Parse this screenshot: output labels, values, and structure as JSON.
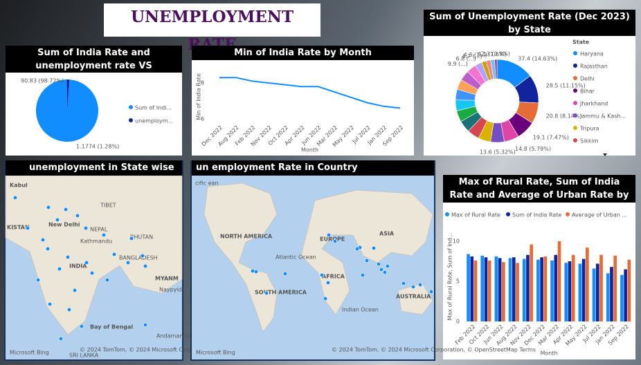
{
  "title": "UNEMPLOYMENT RATE",
  "chart_data": [
    {
      "type": "pie",
      "title": "Sum of India Rate and unemployment rate VS",
      "categories": [
        "Sum of Indi...",
        "unemploym..."
      ],
      "values": [
        90.83,
        1.1774
      ],
      "value_labels": [
        "90.83 (98.72%)",
        "1.1774 (1.28%)"
      ],
      "colors": [
        "#118dff",
        "#12239e"
      ]
    },
    {
      "type": "line",
      "title": "Min of India Rate by Month",
      "x_label": "Month",
      "y_label": "Min of India Rate",
      "categories": [
        "Dec 2022",
        "Aug 2022",
        "Feb 2022",
        "Nov 2022",
        "Oct 2022",
        "Apr 2022",
        "Jun 2022",
        "Mar 2022",
        "May 2022",
        "Jul 2022",
        "Jan 2022",
        "Sep 2022"
      ],
      "values": [
        8.3,
        8.3,
        8.1,
        8.0,
        7.9,
        7.8,
        7.8,
        7.5,
        7.2,
        6.9,
        6.7,
        6.6
      ],
      "color": "#118dff",
      "ylim": [
        5.8,
        8.6
      ],
      "yticks": [
        6,
        8
      ]
    },
    {
      "type": "donut",
      "title": "Sum of Unemployment Rate (Dec 2023) by State",
      "legend_title": "State",
      "categories": [
        "Haryana",
        "Rajasthan",
        "Delhi",
        "Bihar",
        "Jharkhand",
        "Jammu & Kash...",
        "Tripura",
        "Sikkim",
        null,
        null,
        null,
        null,
        null,
        null,
        null,
        null,
        null,
        null,
        null,
        null
      ],
      "values": [
        37.4,
        28.5,
        20.8,
        19.1,
        14.8,
        13.6,
        12.4,
        12.2,
        11.8,
        11.2,
        10.9,
        10.6,
        10.2,
        10.0,
        9.9,
        6.8,
        4.7,
        4.3,
        4.1,
        2.3
      ],
      "value_labels": [
        "37.4 (14.63%)",
        "28.5 (11.15%)",
        "20.8 (8.14%)",
        "19.1 (7.47%)",
        "14.8 (5.79%)",
        "13.6 (5.32%)",
        null,
        null,
        null,
        null,
        null,
        null,
        null,
        null,
        "9.9 (...)",
        "6.8 (...)",
        "4.7 (...)",
        "4.3 (1...)",
        "4.1 (1.6%)",
        "2.3 (0.9%)"
      ],
      "colors": [
        "#118dff",
        "#12239e",
        "#e66c37",
        "#6b007b",
        "#e044a7",
        "#744ec2",
        "#d9b300",
        "#d64550",
        "#197278",
        "#1aab40",
        "#15c6f4",
        "#4092ff",
        "#ffa058",
        "#be5dc9",
        "#f472d0",
        "#b5a1ff",
        "#c4a200",
        "#ff8080",
        "#6ac4ff",
        "#a43b76"
      ]
    },
    {
      "type": "grouped_bar",
      "title": "Max of Rural Rate, Sum of India Rate and Average of Urban Rate by Month",
      "x_label": "Month",
      "y_label": "Max of Rural Rate, Sum of Ind...",
      "categories": [
        "Feb 2022",
        "Oct 2022",
        "Jun 2022",
        "Aug 2022",
        "Nov 2022",
        "Dec 2022",
        "Mar 2022",
        "Apr 2022",
        "May 2022",
        "Jul 2022",
        "Jan 2022",
        "Sep 2022"
      ],
      "series": [
        {
          "name": "Max of Rural Rate",
          "color": "#118dff",
          "values": [
            8.4,
            8.2,
            8.1,
            7.9,
            7.8,
            7.7,
            7.6,
            7.3,
            7.2,
            6.6,
            6.0,
            5.8
          ]
        },
        {
          "name": "Sum of India Rate",
          "color": "#12239e",
          "values": [
            8.1,
            8.0,
            7.9,
            8.0,
            8.3,
            8.0,
            8.3,
            7.5,
            7.8,
            7.2,
            6.8,
            6.5
          ]
        },
        {
          "name": "Average of Urban ...",
          "color": "#e66c37",
          "values": [
            7.6,
            7.6,
            7.4,
            7.3,
            9.6,
            8.1,
            10.0,
            8.3,
            9.2,
            8.3,
            8.2,
            7.7
          ]
        }
      ],
      "ylim": [
        0,
        11
      ],
      "yticks": [
        0,
        5,
        10
      ]
    }
  ],
  "maps": [
    {
      "title": "unemployment in State wise",
      "labels": [
        "Kabul",
        "TIBET",
        "KISTAN",
        "New Delhi",
        "NEPAL",
        "Kathmandu",
        "BHUTAN",
        "BANGLADESH",
        "INDIA",
        "MYANM",
        "Naypyid",
        "Bay of Bengal",
        "Andaman Sea",
        "SRI LANKA"
      ],
      "credit": "© 2024 TomTom, © 2024 Microsoft Corporation, © OpenStreetMap  Terms",
      "brand": "Microsoft Bing"
    },
    {
      "title": "un employment Rate in Country",
      "labels": [
        "NORTH AMERICA",
        "EUROPE",
        "ASIA",
        "Atlantic Ocean",
        "AFRICA",
        "SOUTH AMERICA",
        "Indian Ocean",
        "AUSTRALIA",
        "cific ean"
      ],
      "credit": "© 2024 TomTom, © 2024 Microsoft Corporation, © OpenStreetMap  Terms",
      "brand": "Microsoft Bing"
    }
  ]
}
